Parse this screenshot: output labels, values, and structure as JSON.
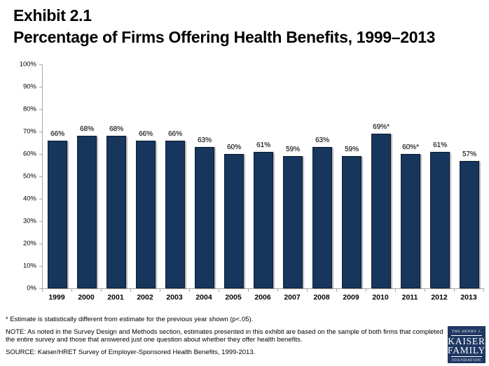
{
  "title": {
    "line1": "Exhibit 2.1",
    "line2": "Percentage of Firms Offering Health Benefits, 1999–2013"
  },
  "chart_data": {
    "type": "bar",
    "title": "Percentage of Firms Offering Health Benefits, 1999–2013",
    "xlabel": "",
    "ylabel": "",
    "categories": [
      "1999",
      "2000",
      "2001",
      "2002",
      "2003",
      "2004",
      "2005",
      "2006",
      "2007",
      "2008",
      "2009",
      "2010",
      "2011",
      "2012",
      "2013"
    ],
    "values": [
      66,
      68,
      68,
      66,
      66,
      63,
      60,
      61,
      59,
      63,
      59,
      69,
      60,
      61,
      57
    ],
    "bar_labels": [
      "66%",
      "68%",
      "68%",
      "66%",
      "66%",
      "63%",
      "60%",
      "61%",
      "59%",
      "63%",
      "59%",
      "69%*",
      "60%*",
      "61%",
      "57%"
    ],
    "y_ticks": [
      "100%",
      "90%",
      "80%",
      "70%",
      "60%",
      "50%",
      "40%",
      "30%",
      "20%",
      "10%",
      "0%"
    ],
    "ylim": [
      0,
      100
    ],
    "grid": false,
    "legend": false,
    "bar_color": "#17365D",
    "axis_color": "#A6A6A6"
  },
  "footnotes": {
    "estimate": "* Estimate is statistically different from estimate for the previous year shown (p<.05).",
    "note": "NOTE: As noted in the Survey Design and Methods section, estimates presented in this exhibit are based on the sample of both firms that completed the entire survey and those that answered just one question about whether they offer health benefits.",
    "source": "SOURCE: Kaiser/HRET Survey of Employer-Sponsored Health Benefits, 1999-2013."
  },
  "logo": {
    "top": "THE HENRY J.",
    "name_line1": "KAISER",
    "name_line2": "FAMILY",
    "bottom": "FOUNDATION",
    "bg_color": "#1F3864"
  }
}
